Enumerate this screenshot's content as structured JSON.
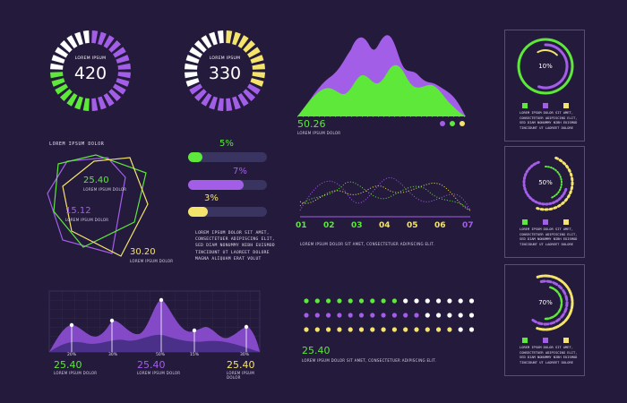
{
  "colors": {
    "green": "#5de83a",
    "purple": "#a35ee8",
    "yellow": "#f4e46c",
    "bg": "#241a3c",
    "panel_border": "#5a4e78"
  },
  "gauges": [
    {
      "label": "LOREM IPSUM",
      "value": "420"
    },
    {
      "label": "LOREM IPSUM",
      "value": "330"
    }
  ],
  "area_chart": {
    "value": "50.26",
    "caption": "LOREM IPSUM DOLOR"
  },
  "polygons": {
    "title": "LOREM IPSUM DOLOR",
    "items": [
      {
        "value": "25.40",
        "caption": "LOREM IPSUM DOLOR"
      },
      {
        "value": "15.12",
        "caption": "LOREM IPSUM DOLOR"
      },
      {
        "value": "30.20",
        "caption": "LOREM IPSUM DOLOR"
      }
    ]
  },
  "progress": [
    {
      "label": "5%",
      "fraction": 0.18,
      "color": "green"
    },
    {
      "label": "7%",
      "fraction": 0.7,
      "color": "purple"
    },
    {
      "label": "3%",
      "fraction": 0.25,
      "color": "yellow"
    }
  ],
  "paragraph": [
    "LOREM IPSUM DOLOR SIT AMET,",
    "CONSECTETUER ADIPISCING ELIT,",
    "SED DIAM NONUMMY NIBH EUISMOD",
    "TINCIDUNT UT LAOREET DOLORE",
    "MAGNA ALIQUAM ERAT VOLUT"
  ],
  "wave_chart": {
    "ticks": [
      "01",
      "02",
      "03",
      "04",
      "05",
      "06",
      "07"
    ],
    "caption": "LOREM IPSUM DOLOR SIT AMET, CONSECTETUER ADIPISCING ELIT."
  },
  "peak_chart": {
    "markers": [
      "20%",
      "30%",
      "50%",
      "15%",
      "30%"
    ],
    "stats": [
      {
        "value": "25.40",
        "caption": "LOREM IPSUM DOLOR"
      },
      {
        "value": "25.40",
        "caption": "LOREM IPSUM DOLOR"
      },
      {
        "value": "25.40",
        "caption": "LOREM IPSUM DOLOR"
      }
    ]
  },
  "dot_matrix": {
    "value": "25.40",
    "caption": "LOREM IPSUM DOLOR SIT AMET, CONSECTETUER ADIPISCING ELIT."
  },
  "ring_panels": [
    {
      "percent": "10%",
      "text": [
        "LOREM IPSUM DOLOR SIT AMET,",
        "CONSECTETUER ADIPISCING ELIT,",
        "SED DIAM NONUMMY NIBH EUISMOD",
        "TINCIDUNT UT LAOREET DOLORE"
      ]
    },
    {
      "percent": "50%",
      "text": [
        "LOREM IPSUM DOLOR SIT AMET,",
        "CONSECTETUER ADIPISCING ELIT,",
        "SED DIAM NONUMMY NIBH EUISMOD",
        "TINCIDUNT UT LAOREET DOLORE"
      ]
    },
    {
      "percent": "70%",
      "text": [
        "LOREM IPSUM DOLOR SIT AMET,",
        "CONSECTETUER ADIPISCING ELIT,",
        "SED DIAM NONUMMY NIBH EUISMOD",
        "TINCIDUNT UT LAOREET DOLORE"
      ]
    }
  ]
}
